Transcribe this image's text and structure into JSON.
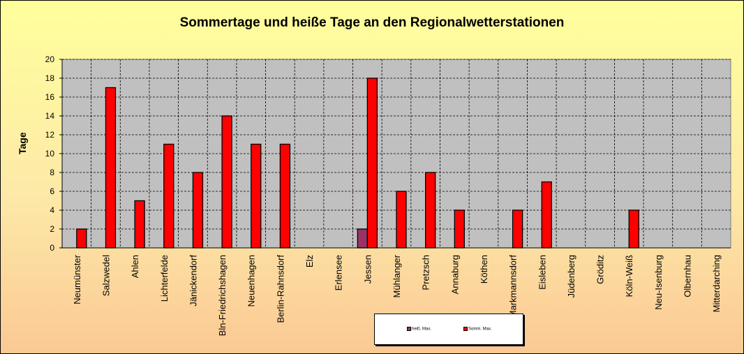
{
  "chart_data": {
    "type": "bar",
    "title": "Sommertage und heiße Tage an den Regionalwetterstationen",
    "ylabel": "Tage",
    "xlabel": "",
    "ylim": [
      0,
      20
    ],
    "yticks": [
      0,
      2,
      4,
      6,
      8,
      10,
      12,
      14,
      16,
      18,
      20
    ],
    "grid": true,
    "legend_position": "bottom",
    "categories": [
      "Neumünster",
      "Salzwedel",
      "Ahlen",
      "Lichterfelde",
      "Jänickendorf",
      "Bln-Friedrichshagen",
      "Neuenhagen",
      "Berlin-Rahnsdorf",
      "Elz",
      "Erlensee",
      "Jessen",
      "Mühlanger",
      "Pretzsch",
      "Annaburg",
      "Köthen",
      "Markmannsdorf",
      "Eisleben",
      "Jüdenberg",
      "Gröditz",
      "Köln-Weiß",
      "Neu-Isenburg",
      "Olbernhau",
      "Mitterdarching"
    ],
    "series": [
      {
        "name": "heiß. Max.",
        "color": "#993366",
        "values": [
          0,
          0,
          0,
          0,
          0,
          0,
          0,
          0,
          0,
          0,
          2,
          0,
          0,
          0,
          0,
          0,
          0,
          0,
          0,
          0,
          0,
          0,
          0
        ]
      },
      {
        "name": "Somm. Max.",
        "color": "#ff0000",
        "values": [
          2,
          17,
          5,
          11,
          8,
          14,
          11,
          11,
          0,
          0,
          18,
          6,
          8,
          4,
          0,
          4,
          7,
          0,
          0,
          4,
          0,
          0,
          0
        ]
      }
    ],
    "plot_background": "#c0c0c0"
  }
}
